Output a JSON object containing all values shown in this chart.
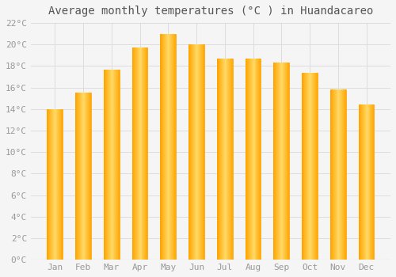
{
  "title": "Average monthly temperatures (°C ) in Huandacareo",
  "months": [
    "Jan",
    "Feb",
    "Mar",
    "Apr",
    "May",
    "Jun",
    "Jul",
    "Aug",
    "Sep",
    "Oct",
    "Nov",
    "Dec"
  ],
  "values": [
    14.0,
    15.5,
    17.7,
    19.7,
    21.0,
    20.0,
    18.7,
    18.7,
    18.3,
    17.4,
    15.8,
    14.4
  ],
  "bar_color_center": "#FFD966",
  "bar_color_edge": "#FFA500",
  "background_color": "#F5F5F5",
  "plot_bg_color": "#F5F5F5",
  "grid_color": "#DDDDDD",
  "ylim": [
    0,
    22
  ],
  "ytick_step": 2,
  "title_fontsize": 10,
  "tick_fontsize": 8,
  "tick_color": "#999999",
  "title_color": "#555555",
  "label_font": "monospace",
  "bar_width": 0.55
}
